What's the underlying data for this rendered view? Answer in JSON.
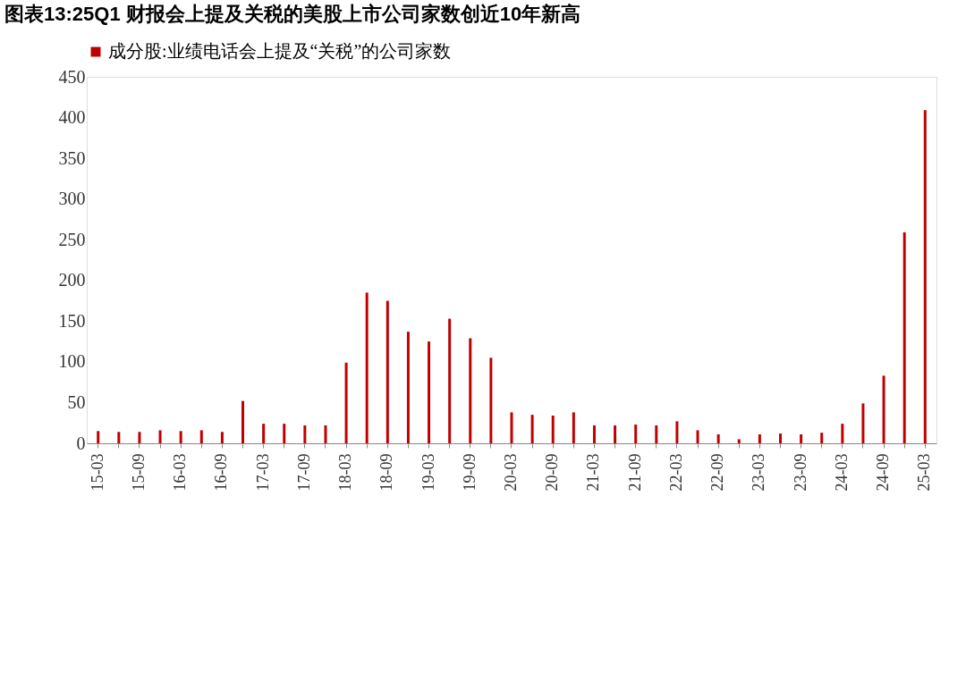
{
  "chart_data": {
    "type": "bar",
    "title": "图表13:25Q1 财报会上提及关税的美股上市公司家数创近10年新高",
    "categories": [
      "15-03",
      null,
      "15-09",
      null,
      "16-03",
      null,
      "16-09",
      null,
      "17-03",
      null,
      "17-09",
      null,
      "18-03",
      null,
      "18-09",
      null,
      "19-03",
      null,
      "19-09",
      null,
      "20-03",
      null,
      "20-09",
      null,
      "21-03",
      null,
      "21-09",
      null,
      "22-03",
      null,
      "22-09",
      null,
      "23-03",
      null,
      "23-09",
      null,
      "24-03",
      null,
      "24-09",
      null,
      "25-03"
    ],
    "series": [
      {
        "name": "成分股:业绩电话会上提及“关税”的公司家数",
        "color": "#c00000",
        "values": [
          15,
          14,
          14,
          16,
          15,
          16,
          14,
          52,
          24,
          24,
          22,
          22,
          99,
          185,
          175,
          137,
          125,
          153,
          129,
          105,
          38,
          35,
          34,
          38,
          22,
          22,
          23,
          22,
          27,
          16,
          11,
          5,
          11,
          12,
          11,
          13,
          24,
          49,
          83,
          259,
          409
        ]
      }
    ],
    "ylim": [
      0,
      450
    ],
    "yticks": [
      0,
      50,
      100,
      150,
      200,
      250,
      300,
      350,
      400,
      450
    ],
    "grid": false,
    "legend": "top"
  }
}
